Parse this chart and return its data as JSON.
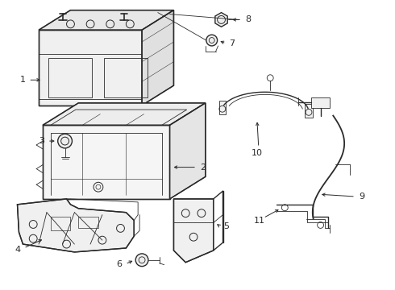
{
  "background_color": "#ffffff",
  "line_color": "#2a2a2a",
  "label_color": "#000000",
  "figure_width": 4.9,
  "figure_height": 3.6,
  "dpi": 100
}
